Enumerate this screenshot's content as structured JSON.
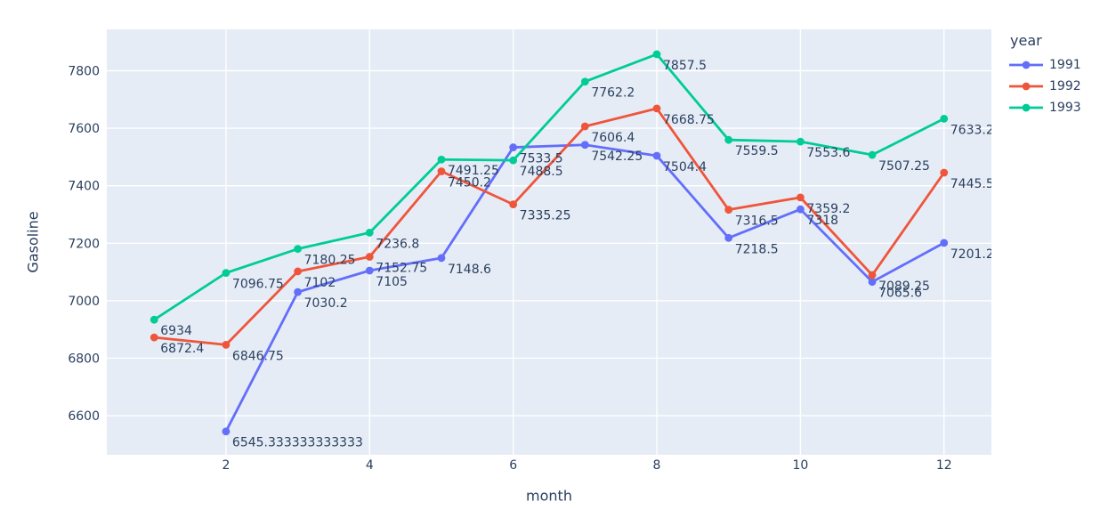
{
  "chart_data": {
    "type": "line",
    "title": "",
    "xlabel": "month",
    "ylabel": "Gasoline",
    "legend_title": "year",
    "legend_position": "top-right-outside",
    "grid": true,
    "x_ticks": [
      2,
      4,
      6,
      8,
      10,
      12
    ],
    "y_ticks": [
      6600,
      6800,
      7000,
      7200,
      7400,
      7600,
      7800
    ],
    "xlim": [
      0.34,
      12.66
    ],
    "ylim": [
      6464,
      7944
    ],
    "plot_bgcolor": "#E5ECF6",
    "grid_color": "#FFFFFF",
    "text_color": "#2A3F5F",
    "series": [
      {
        "name": "1991",
        "color": "#636EFA",
        "x": [
          2,
          3,
          4,
          5,
          6,
          7,
          8,
          9,
          10,
          11,
          12
        ],
        "y": [
          6545.333333333333,
          7030.2,
          7105,
          7148.6,
          7533.5,
          7542.25,
          7504.4,
          7218.5,
          7318,
          7065.6,
          7201.2
        ],
        "labels": [
          "6545.333333333333",
          "7030.2",
          "7105",
          "7148.6",
          "7533.5",
          "7542.25",
          "7504.4",
          "7218.5",
          "7318",
          "7065.6",
          "7201.2"
        ]
      },
      {
        "name": "1992",
        "color": "#EF553B",
        "x": [
          1,
          2,
          3,
          4,
          5,
          6,
          7,
          8,
          9,
          10,
          11,
          12
        ],
        "y": [
          6872.4,
          6846.75,
          7102,
          7152.75,
          7450.2,
          7335.25,
          7606.4,
          7668.75,
          7316.5,
          7359.2,
          7089.25,
          7445.5
        ],
        "labels": [
          "6872.4",
          "6846.75",
          "7102",
          "7152.75",
          "7450.2",
          "7335.25",
          "7606.4",
          "7668.75",
          "7316.5",
          "7359.2",
          "7089.25",
          "7445.5"
        ]
      },
      {
        "name": "1993",
        "color": "#00CC96",
        "x": [
          1,
          2,
          3,
          4,
          5,
          6,
          7,
          8,
          9,
          10,
          11,
          12
        ],
        "y": [
          6934,
          7096.75,
          7180.25,
          7236.8,
          7491.25,
          7488.5,
          7762.2,
          7857.5,
          7559.5,
          7553.6,
          7507.25,
          7633.2
        ],
        "labels": [
          "6934",
          "7096.75",
          "7180.25",
          "7236.8",
          "7491.25",
          "7488.5",
          "7762.2",
          "7857.5",
          "7559.5",
          "7553.6",
          "7507.25",
          "7633.2"
        ]
      }
    ]
  }
}
